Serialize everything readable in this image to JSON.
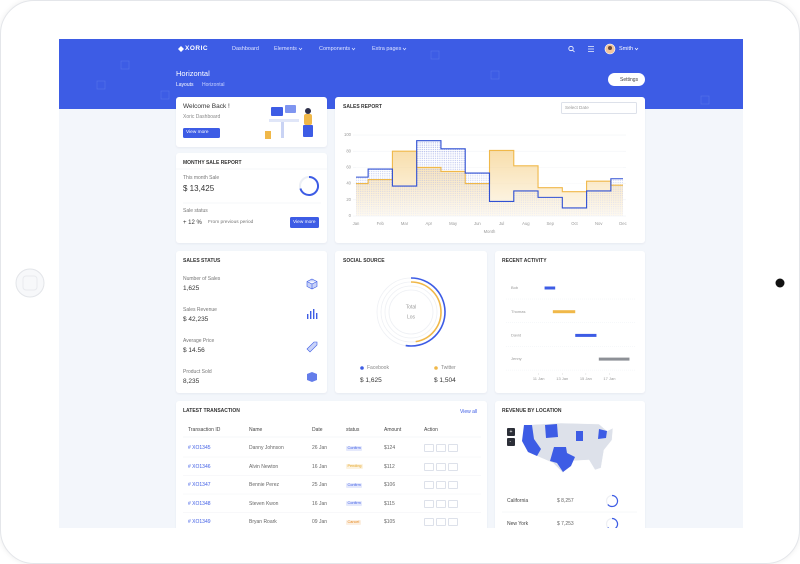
{
  "nav": {
    "logo": "XORIC",
    "items": [
      "Dashboard",
      "Elements",
      "Components",
      "Extra pages"
    ],
    "user": "Smith"
  },
  "page_header": {
    "title": "Horizontal",
    "breadcrumb": [
      "Layouts",
      "Horizontal"
    ],
    "settings_button": "Settings"
  },
  "welcome": {
    "title": "Welcome Back !",
    "subtitle": "Xoric Dashboard",
    "button": "View more"
  },
  "monthly_sale": {
    "title": "MONTHY SALE REPORT",
    "label": "This month Sale",
    "value": "$ 13,425",
    "status_label": "Sale status",
    "change": "+ 12 %",
    "change_note": "From previous period",
    "button": "View more"
  },
  "sales_report": {
    "title": "SALES REPORT",
    "date_placeholder": "Select Date",
    "chart": {
      "type": "step",
      "categories": [
        "Jan",
        "Feb",
        "Mar",
        "Apr",
        "May",
        "Jun",
        "Jul",
        "Aug",
        "Sep",
        "Oct",
        "Nov",
        "Dec"
      ],
      "series": [
        {
          "color": "#f0b849",
          "values": [
            40,
            45,
            80,
            60,
            55,
            40,
            81,
            62,
            35,
            30,
            43,
            38
          ]
        },
        {
          "color": "#3151d3",
          "values": [
            48,
            58,
            37,
            93,
            83,
            53,
            18,
            31,
            23,
            10,
            31,
            46
          ]
        }
      ],
      "ylim": [
        0,
        100
      ],
      "yticks": [
        0,
        20,
        40,
        60,
        80,
        100
      ],
      "x_label": "Month"
    }
  },
  "sales_status": {
    "title": "SALES STATUS",
    "items": [
      {
        "label": "Number of Sales",
        "value": "1,625"
      },
      {
        "label": "Sales Revenue",
        "value": "$ 42,235"
      },
      {
        "label": "Average Price",
        "value": "$ 14.56"
      },
      {
        "label": "Product Sold",
        "value": "8,235"
      }
    ]
  },
  "social_source": {
    "title": "SOCIAL SOURCE",
    "center": [
      "Total",
      "Los"
    ],
    "items": [
      {
        "name": "Facebook",
        "value": "$ 1,625",
        "color": "#3d5ce5"
      },
      {
        "name": "Twitter",
        "value": "$ 1,504",
        "color": "#f0b849"
      }
    ]
  },
  "recent_activity": {
    "title": "RECENT ACTIVITY",
    "chart": {
      "type": "timeline",
      "rows": [
        "Bob",
        "Thomas",
        "David",
        "Jenny"
      ],
      "bars": [
        {
          "start": 11.5,
          "end": 12.4,
          "color": "#3d5ce5"
        },
        {
          "start": 12.2,
          "end": 14.1,
          "color": "#f0b849"
        },
        {
          "start": 14.1,
          "end": 15.9,
          "color": "#3d5ce5"
        },
        {
          "start": 16.1,
          "end": 18.7,
          "color": "#8d9096"
        }
      ],
      "xlim": [
        9.5,
        19
      ],
      "xticks": [
        {
          "value": 11,
          "label": "11 Jan"
        },
        {
          "value": 13,
          "label": "13 Jan"
        },
        {
          "value": 15,
          "label": "15 Jan"
        },
        {
          "value": 17,
          "label": "17 Jan"
        }
      ]
    }
  },
  "transactions": {
    "title": "LATEST TRANSACTION",
    "view_all": "View all",
    "columns": [
      "Transaction ID",
      "Name",
      "Date",
      "status",
      "Amount",
      "Action"
    ],
    "rows": [
      {
        "id": "# XO1345",
        "name": "Danny Johnson",
        "date": "26 Jan",
        "status": "Confirm",
        "status_color": "#3d5ce5",
        "amount": "$124"
      },
      {
        "id": "# XO1346",
        "name": "Alvin Newton",
        "date": "16 Jan",
        "status": "Pending",
        "status_color": "#e5a321",
        "amount": "$112"
      },
      {
        "id": "# XO1347",
        "name": "Bennie Perez",
        "date": "25 Jan",
        "status": "Confirm",
        "status_color": "#3d5ce5",
        "amount": "$106"
      },
      {
        "id": "# XO1348",
        "name": "Steven Kwon",
        "date": "16 Jan",
        "status": "Confirm",
        "status_color": "#3d5ce5",
        "amount": "$115"
      },
      {
        "id": "# XO1349",
        "name": "Bryan Roark",
        "date": "09 Jan",
        "status": "Cancel",
        "status_color": "#e58a21",
        "amount": "$105"
      }
    ]
  },
  "revenue_location": {
    "title": "REVENUE BY LOCATION",
    "zoom": [
      "+",
      "-"
    ],
    "items": [
      {
        "name": "California",
        "value": "$ 8,257"
      },
      {
        "name": "New York",
        "value": "$ 7,253"
      }
    ]
  }
}
